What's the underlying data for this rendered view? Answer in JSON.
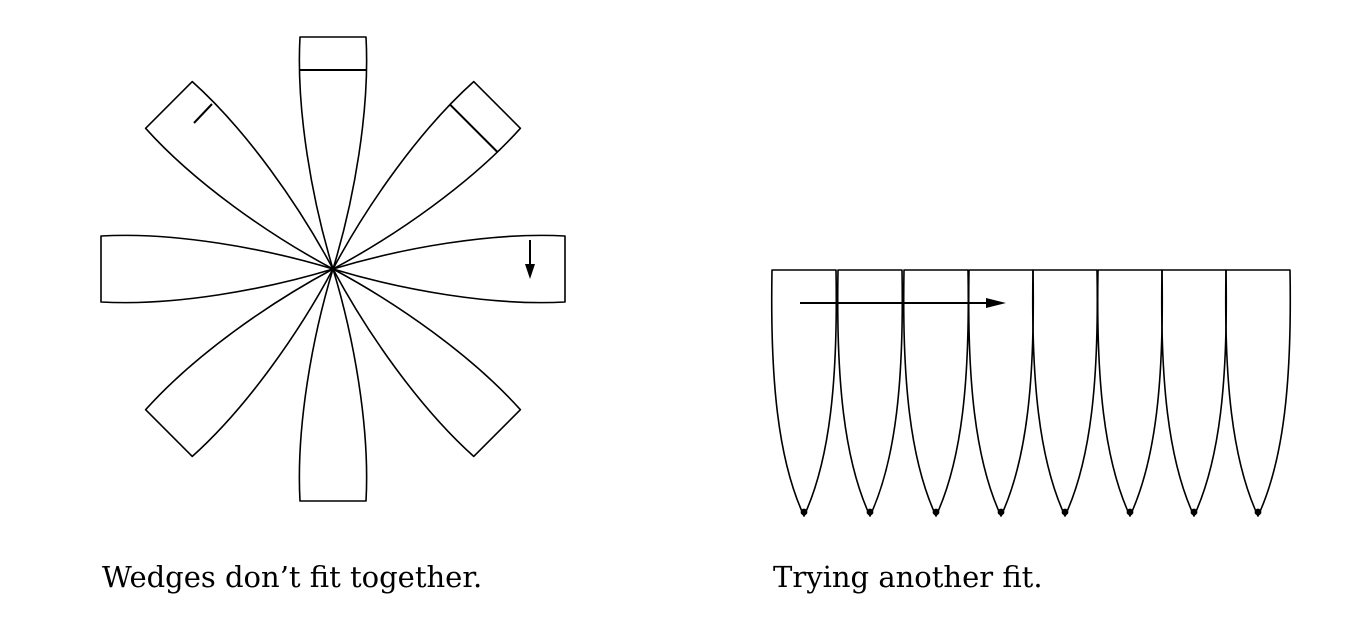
{
  "figure": {
    "left_panel": {
      "caption": "Wedges don’t fit together.",
      "wedge_count": 8
    },
    "right_panel": {
      "caption": "Trying another fit.",
      "wedge_count": 8
    }
  }
}
